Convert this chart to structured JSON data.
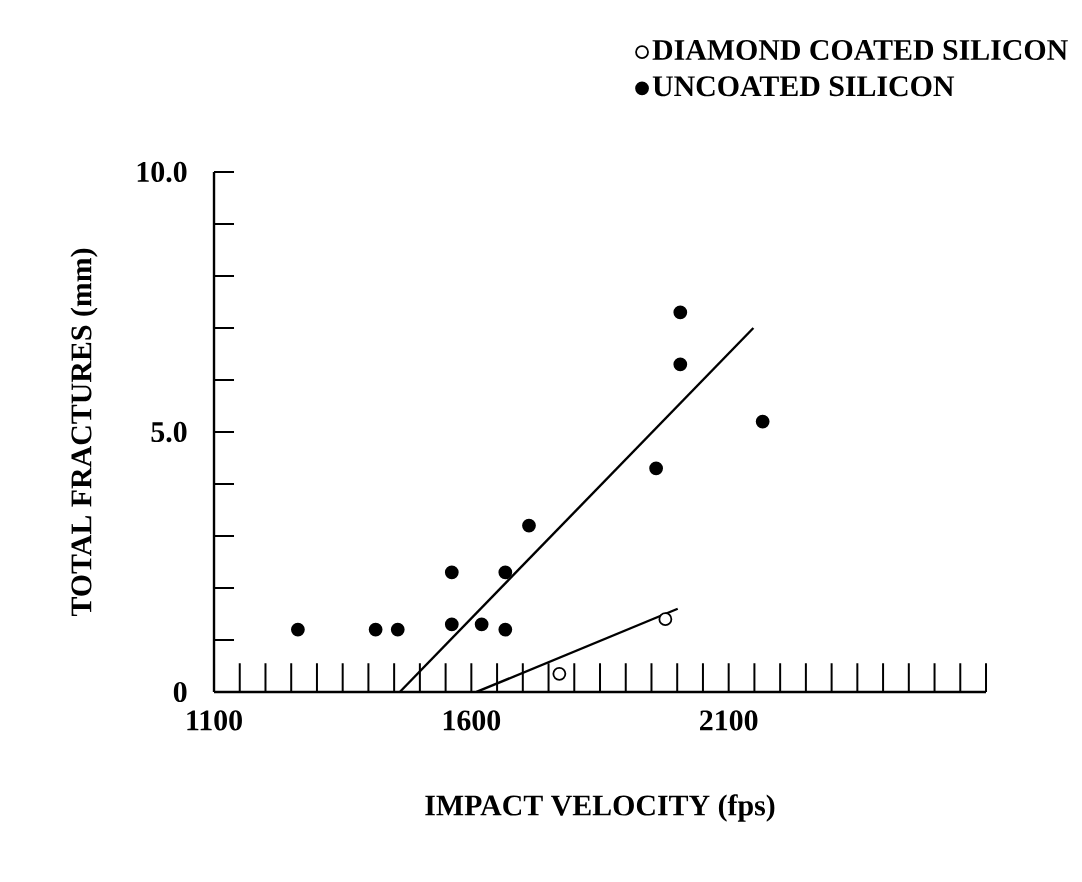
{
  "chart_data": {
    "type": "scatter",
    "xlabel": "IMPACT VELOCITY (fps)",
    "ylabel": "TOTAL FRACTURES (mm)",
    "series": [
      {
        "name": "DIAMOND COATED SILICON",
        "color": "#ffffff",
        "x": [
          1771,
          1977
        ],
        "values": [
          0.35,
          1.4
        ]
      },
      {
        "name": "UNCOATED SILICON",
        "color": "#000000",
        "x": [
          1263,
          1414,
          1457,
          1562,
          1562,
          1620,
          1666,
          1666,
          1712,
          1959,
          2006,
          2006,
          2166
        ],
        "values": [
          1.2,
          1.2,
          1.2,
          1.3,
          2.3,
          1.3,
          2.3,
          1.2,
          3.2,
          4.3,
          6.3,
          7.3,
          5.2
        ]
      },
      {
        "type": "line",
        "color": "#000000",
        "x": [
          1461,
          2148
        ],
        "values": [
          0,
          7.0
        ]
      },
      {
        "type": "line",
        "color": "#000000",
        "x": [
          1610,
          2001
        ],
        "values": [
          0,
          1.6
        ]
      }
    ],
    "legend": "top right",
    "grid": false,
    "xlim": [
      1100,
      2600
    ],
    "ylim": [
      0,
      10
    ],
    "xticks": [
      1100,
      {
        "value": 1150,
        "label": null
      },
      {
        "value": 1200,
        "label": null
      },
      {
        "value": 1250,
        "label": null
      },
      {
        "value": 1300,
        "label": null
      },
      {
        "value": 1350,
        "label": null
      },
      {
        "value": 1400,
        "label": null
      },
      {
        "value": 1450,
        "label": null
      },
      {
        "value": 1500,
        "label": null
      },
      {
        "value": 1550,
        "label": null
      },
      1600,
      {
        "value": 1650,
        "label": null
      },
      {
        "value": 1700,
        "label": null
      },
      {
        "value": 1750,
        "label": null
      },
      {
        "value": 1800,
        "label": null
      },
      {
        "value": 1850,
        "label": null
      },
      {
        "value": 1900,
        "label": null
      },
      {
        "value": 1950,
        "label": null
      },
      {
        "value": 2000,
        "label": null
      },
      {
        "value": 2050,
        "label": null
      },
      2100,
      {
        "value": 2150,
        "label": null
      },
      {
        "value": 2200,
        "label": null
      },
      {
        "value": 2250,
        "label": null
      },
      {
        "value": 2300,
        "label": null
      },
      {
        "value": 2350,
        "label": null
      },
      {
        "value": 2400,
        "label": null
      },
      {
        "value": 2450,
        "label": null
      },
      {
        "value": 2500,
        "label": null
      },
      {
        "value": 2550,
        "label": null
      },
      {
        "value": 2600,
        "label": null
      }
    ],
    "yticks": [
      0,
      {
        "value": 1,
        "label": null
      },
      {
        "value": 2,
        "label": null
      },
      {
        "value": 3,
        "label": null
      },
      {
        "value": 4,
        "label": null
      },
      {
        "value": 5,
        "label": "5.0"
      },
      {
        "value": 6,
        "label": null
      },
      {
        "value": 7,
        "label": null
      },
      {
        "value": 8,
        "label": null
      },
      {
        "value": 9,
        "label": null
      },
      {
        "value": 10,
        "label": "10.0"
      }
    ]
  }
}
